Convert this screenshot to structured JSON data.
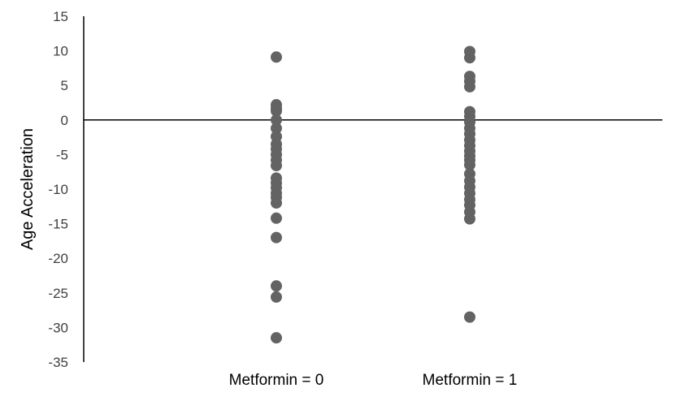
{
  "chart_data": {
    "type": "scatter",
    "title": "",
    "xlabel": "",
    "ylabel": "Age Acceleration",
    "categories": [
      "Metformin = 0",
      "Metformin = 1"
    ],
    "ylim": [
      -35,
      15
    ],
    "yticks": [
      "15",
      "10",
      "5",
      "0",
      "-5",
      "-10",
      "-15",
      "-20",
      "-25",
      "-30",
      "-35"
    ],
    "grid": false,
    "legend": "none",
    "marker_color": "#636363",
    "axis_color": "#000000",
    "series": [
      {
        "category": "Metformin = 0",
        "values": [
          9.1,
          2.2,
          1.7,
          1.3,
          0.0,
          -1.2,
          -2.4,
          -3.5,
          -4.2,
          -5.0,
          -5.8,
          -6.6,
          -8.4,
          -9.1,
          -9.8,
          -10.6,
          -11.2,
          -12.0,
          -14.2,
          -17.0,
          -24.0,
          -25.6,
          -31.5
        ]
      },
      {
        "category": "Metformin = 1",
        "values": [
          9.9,
          9.0,
          6.3,
          5.6,
          4.8,
          1.2,
          0.5,
          -0.3,
          -1.2,
          -2.0,
          -2.9,
          -3.7,
          -4.5,
          -5.2,
          -5.8,
          -6.5,
          -7.8,
          -8.8,
          -9.7,
          -10.6,
          -11.5,
          -12.3,
          -13.3,
          -14.3,
          -28.5
        ]
      }
    ]
  }
}
